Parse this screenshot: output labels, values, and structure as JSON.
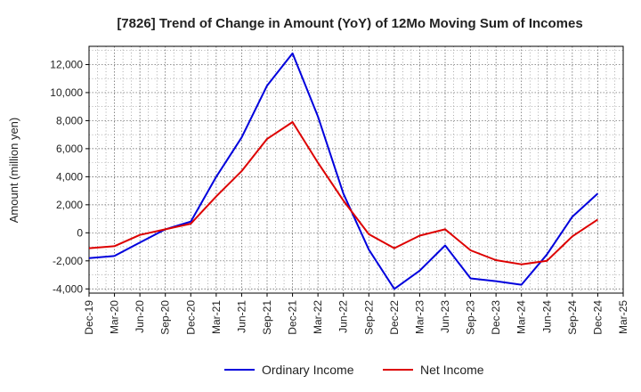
{
  "chart_data": {
    "type": "line",
    "title": "[7826]  Trend of Change in Amount (YoY) of 12Mo Moving Sum of Incomes",
    "xlabel": "",
    "ylabel": "Amount (million yen)",
    "ylim": [
      -4300,
      13300
    ],
    "yticks": [
      -4000,
      -2000,
      0,
      2000,
      4000,
      6000,
      8000,
      10000,
      12000
    ],
    "ytick_labels": [
      "-4,000",
      "-2,000",
      "0",
      "2,000",
      "4,000",
      "6,000",
      "8,000",
      "10,000",
      "12,000"
    ],
    "categories": [
      "Dec-19",
      "Mar-20",
      "Jun-20",
      "Sep-20",
      "Dec-20",
      "Mar-21",
      "Jun-21",
      "Sep-21",
      "Dec-21",
      "Mar-22",
      "Jun-22",
      "Sep-22",
      "Dec-22",
      "Mar-23",
      "Jun-23",
      "Sep-23",
      "Dec-23",
      "Mar-24",
      "Jun-24",
      "Sep-24",
      "Dec-24",
      "Mar-25"
    ],
    "grid": true,
    "legend_position": "bottom-center",
    "series": [
      {
        "name": "Ordinary Income",
        "color": "#0000dd",
        "values": [
          -1800,
          -1650,
          -700,
          250,
          800,
          4000,
          6800,
          10500,
          12800,
          8300,
          2800,
          -1200,
          -4000,
          -2700,
          -900,
          -3250,
          -3450,
          -3700,
          -1550,
          1150,
          2800,
          null
        ]
      },
      {
        "name": "Net Income",
        "color": "#dd0000",
        "values": [
          -1100,
          -950,
          -150,
          250,
          650,
          2600,
          4400,
          6700,
          7900,
          5000,
          2300,
          -100,
          -1100,
          -200,
          250,
          -1250,
          -1950,
          -2250,
          -2000,
          -250,
          950,
          null
        ]
      }
    ]
  }
}
